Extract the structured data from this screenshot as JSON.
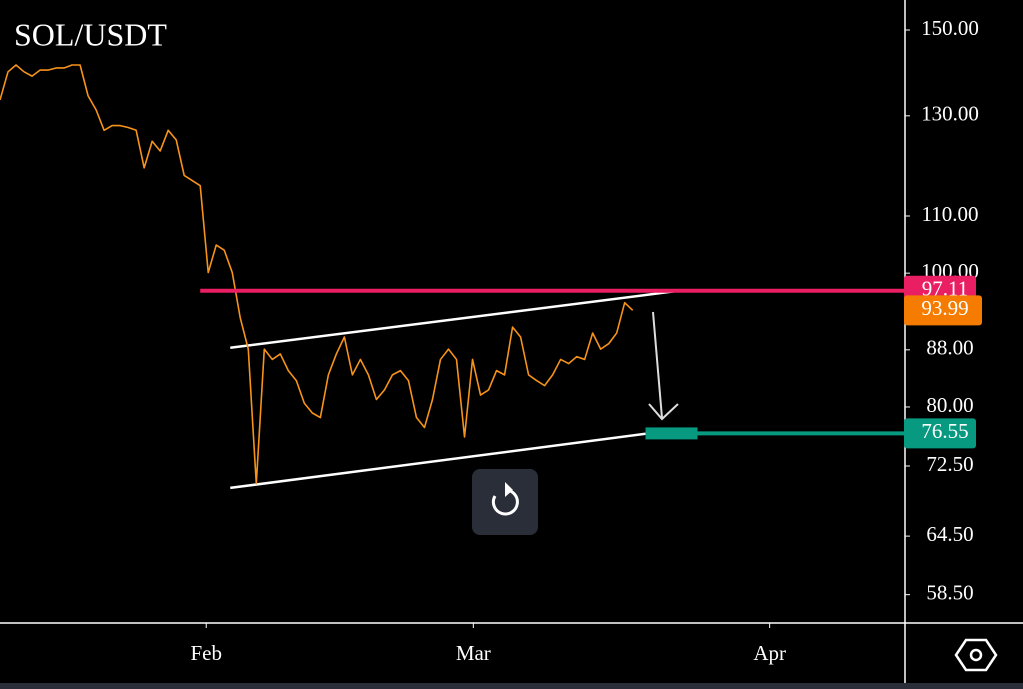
{
  "chart_data": {
    "type": "line",
    "title": "SOL/USDT",
    "log_scale": true,
    "ylim": [
      55.8,
      157.7
    ],
    "yticks": [
      {
        "value": 150,
        "label": "150.00"
      },
      {
        "value": 130,
        "label": "130.00"
      },
      {
        "value": 110,
        "label": "110.00"
      },
      {
        "value": 100,
        "label": "100.00"
      },
      {
        "value": 88,
        "label": "88.00"
      },
      {
        "value": 80,
        "label": "80.00"
      },
      {
        "value": 72.5,
        "label": "72.50"
      },
      {
        "value": 64.5,
        "label": "64.50"
      },
      {
        "value": 58.5,
        "label": "58.50"
      }
    ],
    "xlim": [
      0,
      113
    ],
    "xticks": [
      {
        "value": 25.75,
        "label": "Feb"
      },
      {
        "value": 59.1,
        "label": "Mar"
      },
      {
        "value": 96.1,
        "label": "Apr"
      }
    ],
    "series": [
      {
        "color": "#f7931a",
        "values": [
          133.5,
          139.9,
          141.5,
          139.9,
          138.9,
          140.3,
          140.3,
          140.8,
          140.8,
          141.5,
          141.5,
          134.4,
          131.3,
          126.9,
          127.9,
          127.9,
          127.5,
          126.9,
          119.2,
          124.6,
          122.6,
          126.9,
          124.9,
          117.7,
          116.7,
          115.7,
          100.1,
          104.8,
          103.9,
          100.1,
          92.8,
          88.1,
          70.4,
          88.1,
          86.6,
          87.4,
          85.0,
          83.6,
          80.5,
          79.2,
          78.6,
          84.4,
          87.4,
          89.9,
          84.4,
          86.6,
          84.4,
          81.0,
          82.3,
          84.4,
          85.0,
          83.6,
          78.6,
          77.3,
          81.0,
          86.6,
          88.1,
          86.6,
          76.1,
          86.6,
          81.6,
          82.3,
          85.0,
          84.4,
          91.4,
          89.9,
          84.4,
          83.6,
          82.9,
          84.4,
          86.6,
          86.0,
          87.0,
          86.6,
          90.5,
          88.1,
          88.9,
          90.5,
          95.2,
          93.99
        ],
        "badge_color": "#f57c00"
      }
    ],
    "levels": [
      {
        "value": 97.11,
        "color": "#e91e63",
        "x_start": 25
      },
      {
        "value": 76.55,
        "color": "#089981",
        "x_start": 80.6
      }
    ],
    "trendlines": [
      {
        "x": [
          28.75,
          84.1
        ],
        "y": [
          88.3,
          97.0
        ]
      },
      {
        "x": [
          28.75,
          80.6
        ],
        "y": [
          69.9,
          76.5
        ]
      }
    ]
  }
}
